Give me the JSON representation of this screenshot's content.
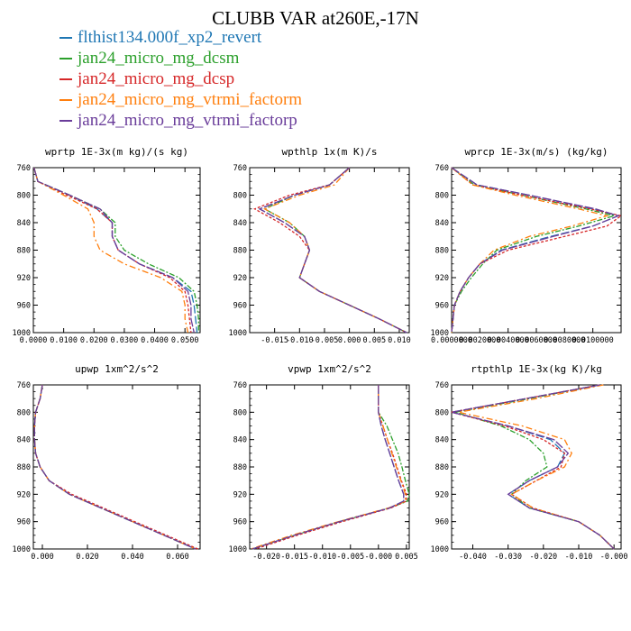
{
  "title": "CLUBB VAR at260E,-17N",
  "legend": [
    {
      "name": "flthist134.000f_xp2_revert",
      "color": "#1f77b4"
    },
    {
      "name": "jan24_micro_mg_dcsm",
      "color": "#2ca02c"
    },
    {
      "name": "jan24_micro_mg_dcsp",
      "color": "#d62728"
    },
    {
      "name": "jan24_micro_mg_vtrmi_factorm",
      "color": "#ff7f0e"
    },
    {
      "name": "jan24_micro_mg_vtrmi_factorp",
      "color": "#6a3d9a"
    }
  ],
  "chart_data": [
    {
      "type": "line",
      "title": "wprtp  1E-3x(m kg)/(s kg)",
      "xlim": [
        0.0,
        0.055
      ],
      "ylim": [
        760,
        1000
      ],
      "x_ticks": [
        "0.0000",
        "0.0100",
        "0.0200",
        "0.0300",
        "0.0400",
        "0.0500"
      ],
      "x_tick_values": [
        0.0,
        0.01,
        0.02,
        0.03,
        0.04,
        0.05
      ],
      "y_ticks": [
        "760",
        "800",
        "840",
        "880",
        "920",
        "960",
        "1000"
      ],
      "y": [
        760,
        780,
        800,
        820,
        840,
        860,
        880,
        900,
        920,
        940,
        960,
        980,
        1000
      ],
      "series": [
        {
          "x": [
            0.0002,
            0.0015,
            0.012,
            0.021,
            0.026,
            0.026,
            0.028,
            0.035,
            0.046,
            0.052,
            0.053,
            0.0535,
            0.054
          ]
        },
        {
          "x": [
            0.0002,
            0.0015,
            0.012,
            0.022,
            0.027,
            0.027,
            0.03,
            0.038,
            0.048,
            0.053,
            0.054,
            0.0545,
            0.0545
          ]
        },
        {
          "x": [
            0.0002,
            0.0015,
            0.011,
            0.021,
            0.026,
            0.026,
            0.028,
            0.035,
            0.045,
            0.05,
            0.051,
            0.0515,
            0.052
          ]
        },
        {
          "x": [
            0.0002,
            0.0015,
            0.01,
            0.018,
            0.02,
            0.02,
            0.022,
            0.03,
            0.042,
            0.049,
            0.05,
            0.05,
            0.051
          ]
        },
        {
          "x": [
            0.0002,
            0.0015,
            0.012,
            0.022,
            0.026,
            0.026,
            0.028,
            0.035,
            0.046,
            0.051,
            0.052,
            0.052,
            0.053
          ]
        }
      ]
    },
    {
      "type": "line",
      "title": "wpthlp  1x(m K)/s",
      "xlim": [
        -0.02,
        0.012
      ],
      "ylim": [
        760,
        1000
      ],
      "x_ticks": [
        "-0.015",
        "-0.010",
        "-0.005",
        "0.000",
        "0.005",
        "0.010"
      ],
      "x_tick_values": [
        -0.015,
        -0.01,
        -0.005,
        0.0,
        0.005,
        0.01
      ],
      "y_ticks": [
        "760",
        "800",
        "840",
        "880",
        "920",
        "960",
        "1000"
      ],
      "y": [
        760,
        785,
        800,
        820,
        840,
        860,
        880,
        900,
        920,
        940,
        960,
        980,
        1000
      ],
      "series": [
        {
          "x": [
            0.0,
            -0.004,
            -0.011,
            -0.018,
            -0.013,
            -0.009,
            -0.008,
            -0.009,
            -0.01,
            -0.006,
            0.0,
            0.006,
            0.0115
          ]
        },
        {
          "x": [
            0.0,
            -0.004,
            -0.011,
            -0.017,
            -0.012,
            -0.009,
            -0.008,
            -0.009,
            -0.01,
            -0.006,
            0.0,
            0.006,
            0.0115
          ]
        },
        {
          "x": [
            0.0,
            -0.004,
            -0.012,
            -0.019,
            -0.014,
            -0.01,
            -0.008,
            -0.009,
            -0.01,
            -0.006,
            0.0,
            0.006,
            0.0115
          ]
        },
        {
          "x": [
            0.0,
            -0.003,
            -0.01,
            -0.017,
            -0.012,
            -0.009,
            -0.008,
            -0.009,
            -0.01,
            -0.006,
            0.0,
            0.006,
            0.0115
          ]
        },
        {
          "x": [
            0.0,
            -0.004,
            -0.011,
            -0.018,
            -0.013,
            -0.009,
            -0.008,
            -0.009,
            -0.01,
            -0.006,
            0.0,
            0.006,
            0.0115
          ]
        }
      ]
    },
    {
      "type": "line",
      "title": "wprcp  1E-3x(m/s) (kg/kg)",
      "xlim": [
        0.0,
        0.012
      ],
      "ylim": [
        760,
        1000
      ],
      "x_ticks": [
        "0.0000000",
        "0.0020000",
        "0.0040000",
        "0.0060000",
        "0.0080000",
        "0.0100000"
      ],
      "x_tick_values": [
        0.0,
        0.002,
        0.004,
        0.006,
        0.008,
        0.01
      ],
      "y_ticks": [
        "760",
        "800",
        "840",
        "880",
        "920",
        "960",
        "1000"
      ],
      "y": [
        760,
        785,
        800,
        820,
        830,
        845,
        860,
        880,
        900,
        920,
        940,
        960,
        1000
      ],
      "series": [
        {
          "x": [
            0.0,
            0.0018,
            0.0055,
            0.01,
            0.0118,
            0.01,
            0.007,
            0.0035,
            0.002,
            0.0012,
            0.0006,
            0.0002,
            0.0
          ]
        },
        {
          "x": [
            0.0,
            0.0016,
            0.005,
            0.0095,
            0.0115,
            0.009,
            0.006,
            0.0032,
            0.0022,
            0.0014,
            0.0007,
            0.0002,
            0.0
          ]
        },
        {
          "x": [
            0.0,
            0.0015,
            0.005,
            0.0098,
            0.012,
            0.011,
            0.008,
            0.004,
            0.002,
            0.0012,
            0.0006,
            0.0002,
            0.0
          ]
        },
        {
          "x": [
            0.0,
            0.0015,
            0.0045,
            0.009,
            0.011,
            0.0085,
            0.0055,
            0.003,
            0.002,
            0.0012,
            0.0006,
            0.0002,
            0.0
          ]
        },
        {
          "x": [
            0.0,
            0.0018,
            0.0055,
            0.0102,
            0.0118,
            0.01,
            0.0072,
            0.0036,
            0.002,
            0.0012,
            0.0006,
            0.0002,
            0.0
          ]
        }
      ]
    },
    {
      "type": "line",
      "title": "upwp  1xm^2/s^2",
      "xlim": [
        -0.004,
        0.07
      ],
      "ylim": [
        760,
        1000
      ],
      "x_ticks": [
        "0.000",
        "0.020",
        "0.040",
        "0.060"
      ],
      "x_tick_values": [
        0.0,
        0.02,
        0.04,
        0.06
      ],
      "y_ticks": [
        "760",
        "800",
        "840",
        "880",
        "920",
        "960",
        "1000"
      ],
      "y": [
        760,
        780,
        800,
        820,
        840,
        860,
        880,
        900,
        920,
        940,
        960,
        980,
        1000
      ],
      "series": [
        {
          "x": [
            0.0,
            -0.001,
            -0.003,
            -0.0035,
            -0.0035,
            -0.003,
            -0.001,
            0.003,
            0.012,
            0.026,
            0.04,
            0.054,
            0.068
          ]
        },
        {
          "x": [
            0.0,
            -0.001,
            -0.003,
            -0.0035,
            -0.0035,
            -0.003,
            -0.001,
            0.003,
            0.012,
            0.026,
            0.04,
            0.054,
            0.068
          ]
        },
        {
          "x": [
            0.0,
            -0.001,
            -0.003,
            -0.0035,
            -0.0035,
            -0.003,
            -0.001,
            0.003,
            0.013,
            0.027,
            0.041,
            0.055,
            0.069
          ]
        },
        {
          "x": [
            0.0,
            -0.001,
            -0.003,
            -0.0035,
            -0.0035,
            -0.003,
            -0.001,
            0.003,
            0.012,
            0.026,
            0.04,
            0.054,
            0.068
          ]
        },
        {
          "x": [
            0.0,
            -0.001,
            -0.003,
            -0.0035,
            -0.0035,
            -0.003,
            -0.001,
            0.003,
            0.012,
            0.026,
            0.04,
            0.054,
            0.068
          ]
        }
      ]
    },
    {
      "type": "line",
      "title": "vpwp  1xm^2/s^2",
      "xlim": [
        -0.023,
        0.0055
      ],
      "ylim": [
        760,
        1000
      ],
      "x_ticks": [
        "-0.020",
        "-0.015",
        "-0.010",
        "-0.005",
        "-0.000",
        "0.005"
      ],
      "x_tick_values": [
        -0.02,
        -0.015,
        -0.01,
        -0.005,
        0.0,
        0.005
      ],
      "y_ticks": [
        "760",
        "800",
        "840",
        "880",
        "920",
        "960",
        "1000"
      ],
      "y": [
        760,
        800,
        820,
        840,
        860,
        880,
        900,
        920,
        930,
        940,
        960,
        980,
        1000
      ],
      "series": [
        {
          "x": [
            0.0,
            0.0,
            0.0005,
            0.0012,
            0.002,
            0.0028,
            0.0036,
            0.0045,
            0.0045,
            0.002,
            -0.007,
            -0.015,
            -0.0225
          ]
        },
        {
          "x": [
            0.0,
            0.0,
            0.0015,
            0.0025,
            0.0035,
            0.0042,
            0.0048,
            0.0055,
            0.0052,
            0.002,
            -0.007,
            -0.015,
            -0.0225
          ]
        },
        {
          "x": [
            0.0,
            0.0,
            0.0008,
            0.0016,
            0.0025,
            0.0033,
            0.0041,
            0.005,
            0.005,
            0.0022,
            -0.0065,
            -0.0145,
            -0.022
          ]
        },
        {
          "x": [
            0.0,
            0.0,
            0.0008,
            0.0016,
            0.0024,
            0.0032,
            0.004,
            0.0048,
            0.0048,
            0.0018,
            -0.0072,
            -0.0155,
            -0.0228
          ]
        },
        {
          "x": [
            0.0,
            0.0,
            0.0005,
            0.0012,
            0.002,
            0.0028,
            0.0036,
            0.0045,
            0.0045,
            0.002,
            -0.007,
            -0.015,
            -0.0225
          ]
        }
      ]
    },
    {
      "type": "line",
      "title": "rtpthlp  1E-3x(kg K)/kg",
      "xlim": [
        -0.046,
        0.002
      ],
      "ylim": [
        760,
        1000
      ],
      "x_ticks": [
        "-0.040",
        "-0.030",
        "-0.020",
        "-0.010",
        "-0.000"
      ],
      "x_tick_values": [
        -0.04,
        -0.03,
        -0.02,
        -0.01,
        0.0
      ],
      "y_ticks": [
        "760",
        "800",
        "840",
        "880",
        "920",
        "960",
        "1000"
      ],
      "y": [
        760,
        780,
        800,
        820,
        840,
        860,
        880,
        900,
        920,
        940,
        960,
        980,
        1000
      ],
      "series": [
        {
          "x": [
            -0.004,
            -0.025,
            -0.046,
            -0.03,
            -0.018,
            -0.014,
            -0.016,
            -0.024,
            -0.03,
            -0.024,
            -0.01,
            -0.004,
            0.0
          ]
        },
        {
          "x": [
            -0.004,
            -0.024,
            -0.045,
            -0.032,
            -0.024,
            -0.02,
            -0.019,
            -0.025,
            -0.029,
            -0.024,
            -0.01,
            -0.004,
            0.0
          ]
        },
        {
          "x": [
            -0.004,
            -0.025,
            -0.046,
            -0.031,
            -0.02,
            -0.014,
            -0.015,
            -0.022,
            -0.029,
            -0.023,
            -0.01,
            -0.004,
            0.0
          ]
        },
        {
          "x": [
            -0.003,
            -0.022,
            -0.044,
            -0.026,
            -0.014,
            -0.012,
            -0.014,
            -0.022,
            -0.029,
            -0.023,
            -0.01,
            -0.004,
            0.0
          ]
        },
        {
          "x": [
            -0.004,
            -0.025,
            -0.046,
            -0.03,
            -0.017,
            -0.013,
            -0.016,
            -0.024,
            -0.03,
            -0.024,
            -0.01,
            -0.004,
            0.0
          ]
        }
      ]
    }
  ]
}
